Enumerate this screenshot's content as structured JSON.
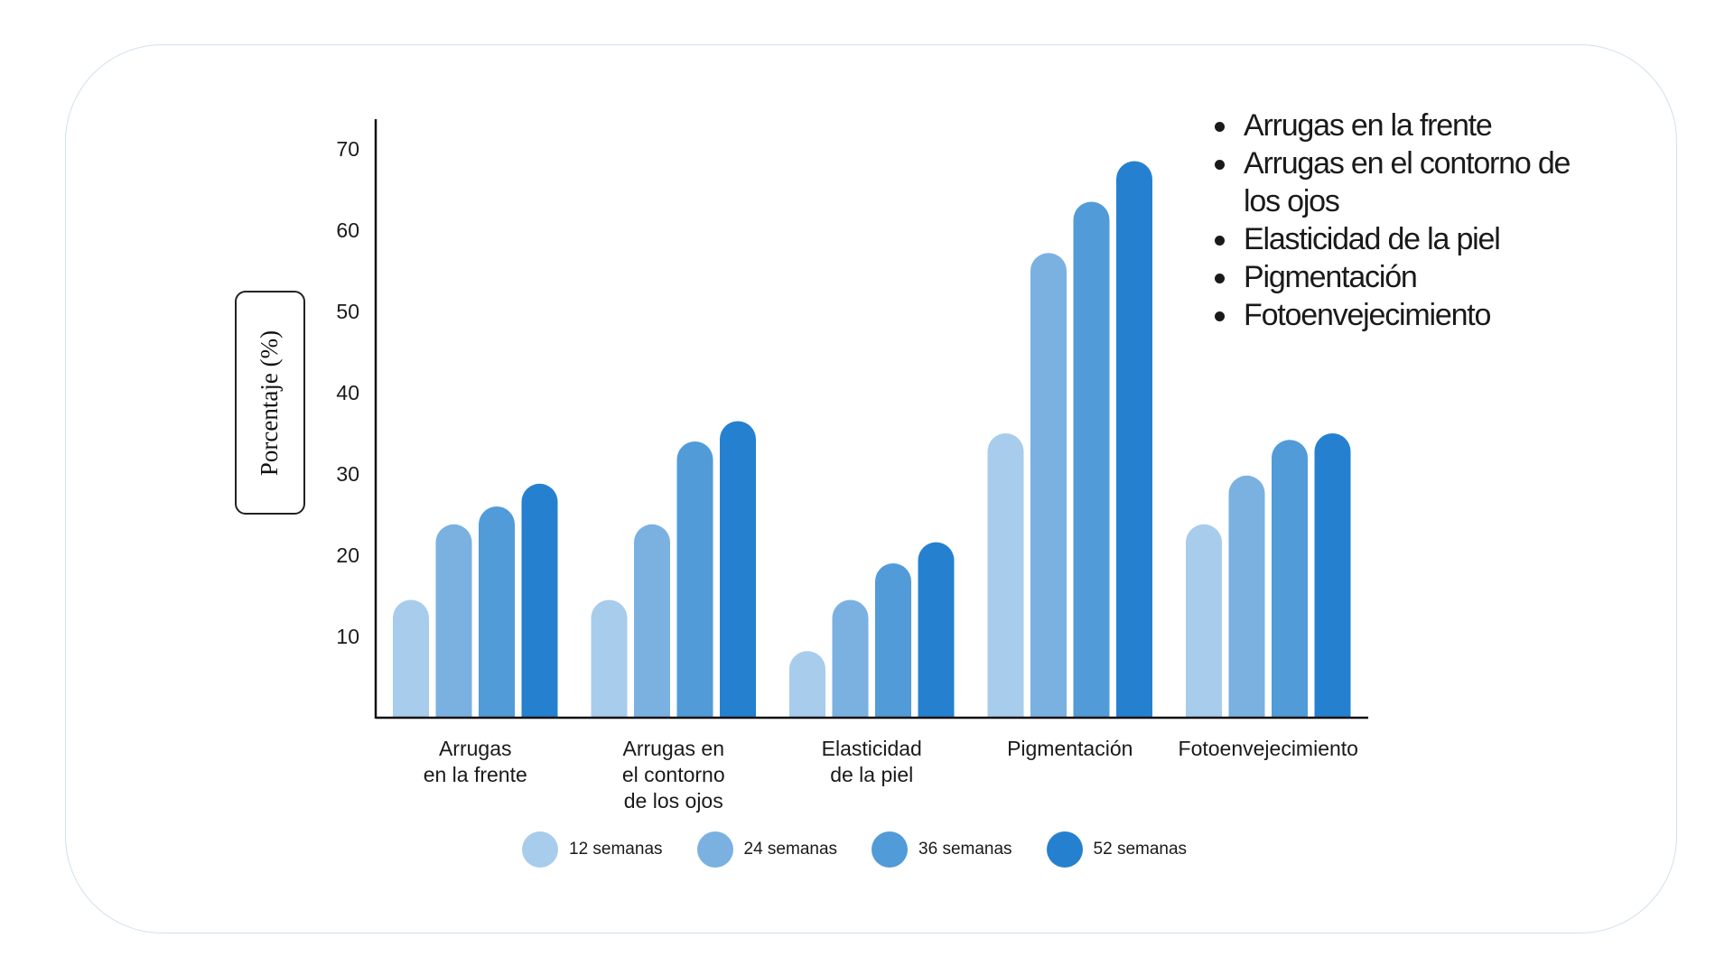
{
  "chart_data": {
    "type": "bar",
    "ylabel": "Porcentaje (%)",
    "ylim": [
      0,
      73
    ],
    "yticks": [
      10,
      20,
      30,
      40,
      50,
      60,
      70
    ],
    "categories": [
      [
        "Arrugas",
        "en la frente"
      ],
      [
        "Arrugas en",
        "el contorno",
        "de los ojos"
      ],
      [
        "Elasticidad",
        "de la piel"
      ],
      [
        "Pigmentación"
      ],
      [
        "Fotoenvejecimiento"
      ]
    ],
    "series": [
      {
        "name": "12 semanas",
        "color": "#a8ccec",
        "values": [
          14.5,
          14.5,
          8.2,
          35.0,
          23.8
        ]
      },
      {
        "name": "24 semanas",
        "color": "#7ab1e1",
        "values": [
          23.8,
          23.8,
          14.5,
          57.2,
          29.8
        ]
      },
      {
        "name": "36 semanas",
        "color": "#519bd9",
        "values": [
          26.0,
          34.0,
          19.0,
          63.5,
          34.2
        ]
      },
      {
        "name": "52 semanas",
        "color": "#2581d0",
        "values": [
          28.8,
          36.5,
          21.6,
          68.5,
          35.0
        ]
      }
    ],
    "grid": false,
    "legend_position": "bottom"
  },
  "notes": [
    "Arrugas en la frente",
    "Arrugas en el contorno de los ojos",
    "Elasticidad de la piel",
    "Pigmentación",
    "Fotoenvejecimiento"
  ],
  "colors": {
    "card_border": "#cfe1ee",
    "axis": "#111111"
  }
}
